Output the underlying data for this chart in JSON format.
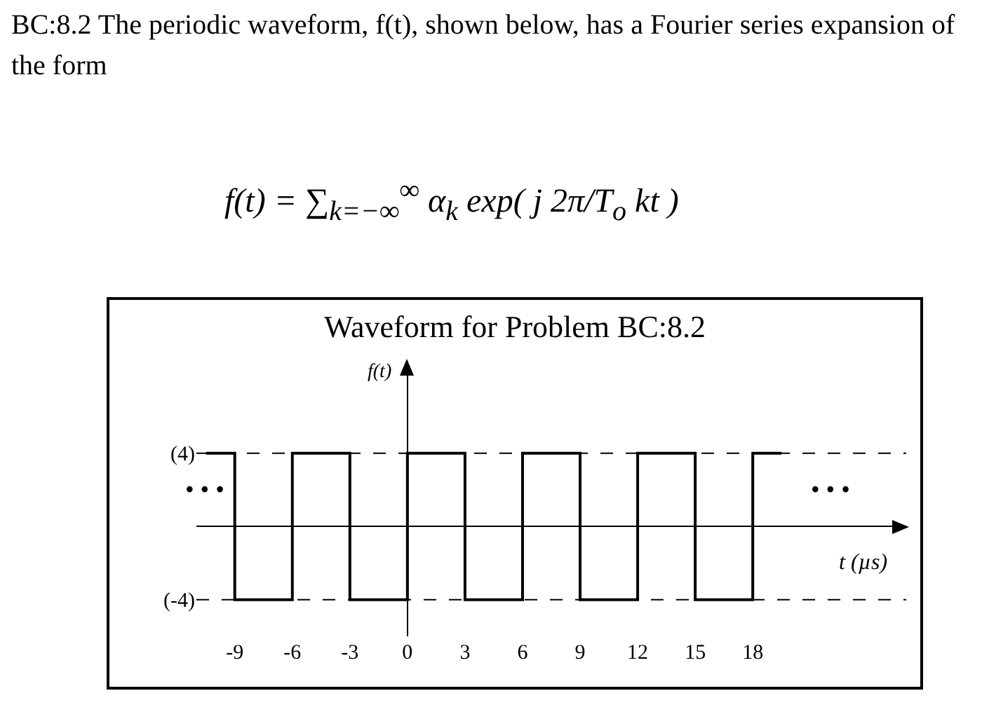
{
  "chart_data": {
    "type": "step",
    "title": "Waveform for Problem BC:8.2",
    "xlabel": "t (µs)",
    "ylabel": "f(t)",
    "annotations": [
      "BC:8.2 The periodic waveform, f(t), shown below, has a Fourier series expansion of the form",
      "f(t) = ∑$_{k=−∞}$$^{∞}$ α$_{k}$ exp( j 2π/T$_{o}$ kt )",
      "• • •",
      "• • •"
    ],
    "x": [
      -10.5,
      -9,
      -6,
      -3,
      0,
      3,
      6,
      9,
      12,
      15,
      18,
      19.5
    ],
    "values": [
      4,
      -4,
      4,
      -4,
      4,
      -4,
      4,
      -4,
      4,
      -4,
      4,
      4
    ],
    "color": "#000000",
    "line_style": "solid",
    "marker": "none",
    "xlim": [
      -11,
      26
    ],
    "xticks": [
      -9,
      -6,
      -3,
      0,
      3,
      6,
      9,
      12,
      15,
      18
    ],
    "ylim": [
      -6,
      9
    ],
    "yticks": [
      {
        "value": 4,
        "label": "(4)"
      },
      {
        "value": -4,
        "label": "(-4)"
      }
    ],
    "ref_lines": [
      {
        "axis": "y",
        "value": 4,
        "line_style": "dashed",
        "color": "#000000"
      },
      {
        "axis": "y",
        "value": -4,
        "line_style": "dashed",
        "color": "#000000"
      }
    ]
  }
}
